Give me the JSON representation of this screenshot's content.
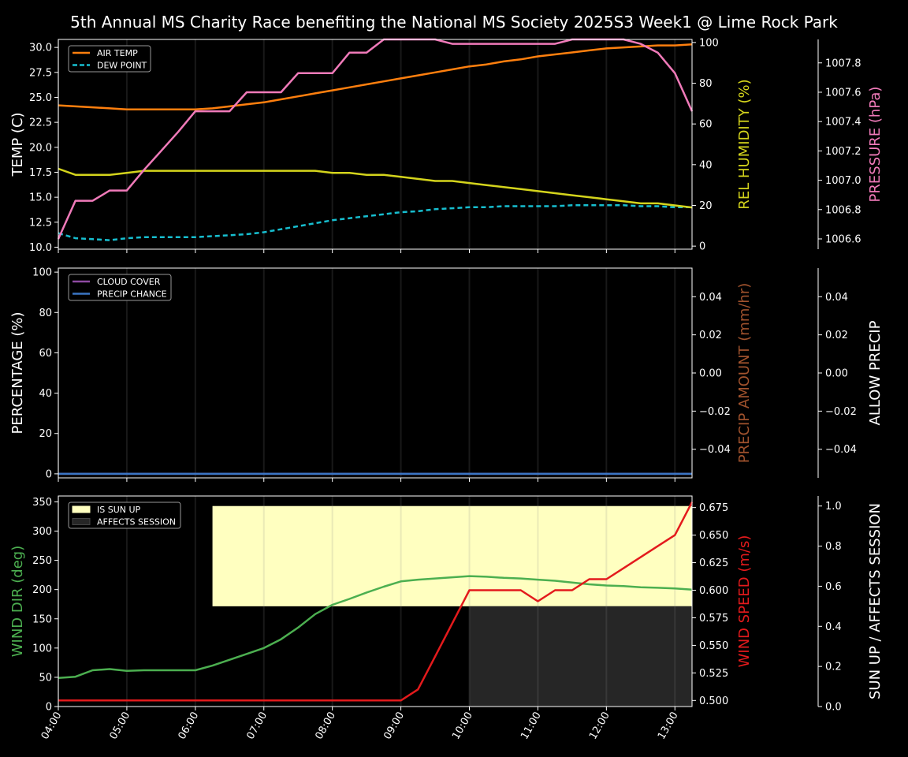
{
  "title": "5th Annual MS Charity Race benefiting the National MS Society 2025S3 Week1 @ Lime Rock Park",
  "colors": {
    "air_temp": "#ff7f0e",
    "dew_point": "#17becf",
    "humidity": "#d4d41c",
    "pressure": "#f07ab9",
    "cloud_cover": "#8e4aa2",
    "precip_chance": "#3a75c4",
    "precip_amount": "#a0522d",
    "wind_dir": "#4caf50",
    "wind_speed": "#e31a1c",
    "sun_up": "#ffffc0",
    "affects_session": "#262626"
  },
  "chart_data": [
    {
      "type": "line",
      "panel": "top",
      "x": [
        "04:00",
        "04:15",
        "04:30",
        "04:45",
        "05:00",
        "05:15",
        "05:30",
        "05:45",
        "06:00",
        "06:15",
        "06:30",
        "06:45",
        "07:00",
        "07:15",
        "07:30",
        "07:45",
        "08:00",
        "08:15",
        "08:30",
        "08:45",
        "09:00",
        "09:15",
        "09:30",
        "09:45",
        "10:00",
        "10:15",
        "10:30",
        "10:45",
        "11:00",
        "11:15",
        "11:30",
        "11:45",
        "12:00",
        "12:15",
        "12:30",
        "12:45",
        "13:00",
        "13:15"
      ],
      "xticks": [
        "04:00",
        "05:00",
        "06:00",
        "07:00",
        "08:00",
        "09:00",
        "10:00",
        "11:00",
        "12:00",
        "13:00"
      ],
      "axes": {
        "left": {
          "label": "TEMP (C)",
          "ylim": [
            9.8,
            30.8
          ],
          "ticks": [
            "10.0",
            "12.5",
            "15.0",
            "17.5",
            "20.0",
            "22.5",
            "25.0",
            "27.5",
            "30.0"
          ]
        },
        "right1": {
          "label": "REL HUMIDITY (%)",
          "ylim": [
            -1.5,
            101.5
          ],
          "ticks": [
            "0",
            "20",
            "40",
            "60",
            "80",
            "100"
          ]
        },
        "right2": {
          "label": "PRESSURE (hPa)",
          "ylim": [
            1006.53,
            1007.96
          ],
          "ticks": [
            "1006.6",
            "1006.8",
            "1007.0",
            "1007.2",
            "1007.4",
            "1007.6",
            "1007.8"
          ]
        }
      },
      "legend": {
        "placement": "top-left",
        "entries": [
          "AIR TEMP",
          "DEW POINT"
        ]
      },
      "series": [
        {
          "name": "AIR TEMP",
          "axis": "left",
          "values": [
            24.2,
            24.1,
            24.0,
            23.9,
            23.8,
            23.8,
            23.8,
            23.8,
            23.8,
            23.9,
            24.1,
            24.3,
            24.5,
            24.8,
            25.1,
            25.4,
            25.7,
            26.0,
            26.3,
            26.6,
            26.9,
            27.2,
            27.5,
            27.8,
            28.1,
            28.3,
            28.6,
            28.8,
            29.1,
            29.3,
            29.5,
            29.7,
            29.9,
            30.0,
            30.1,
            30.2,
            30.2,
            30.3
          ]
        },
        {
          "name": "DEW POINT",
          "axis": "left",
          "values": [
            11.4,
            10.9,
            10.8,
            10.7,
            10.9,
            11.0,
            11.0,
            11.0,
            11.0,
            11.1,
            11.2,
            11.3,
            11.5,
            11.8,
            12.1,
            12.4,
            12.7,
            12.9,
            13.1,
            13.3,
            13.5,
            13.6,
            13.8,
            13.9,
            14.0,
            14.0,
            14.1,
            14.1,
            14.1,
            14.1,
            14.2,
            14.2,
            14.2,
            14.2,
            14.1,
            14.1,
            14.0,
            14.0
          ]
        },
        {
          "name": "REL HUMIDITY",
          "axis": "right1",
          "values": [
            38,
            35,
            35,
            35,
            36,
            37,
            37,
            37,
            37,
            37,
            37,
            37,
            37,
            37,
            37,
            37,
            36,
            36,
            35,
            35,
            34,
            33,
            32,
            32,
            31,
            30,
            29,
            28,
            27,
            26,
            25,
            24,
            23,
            22,
            21,
            21,
            20,
            19
          ]
        },
        {
          "name": "PRESSURE",
          "axis": "right2",
          "values": [
            1006.6,
            1006.86,
            1006.86,
            1006.93,
            1006.93,
            1007.07,
            1007.2,
            1007.33,
            1007.47,
            1007.47,
            1007.47,
            1007.6,
            1007.6,
            1007.6,
            1007.73,
            1007.73,
            1007.73,
            1007.87,
            1007.87,
            1008.0,
            1008.13,
            1008.07,
            1008.07,
            1007.93,
            1007.93,
            1007.93,
            1007.93,
            1007.93,
            1007.93,
            1007.93,
            1008.0,
            1008.0,
            1008.0,
            1008.0,
            1007.93,
            1007.87,
            1007.73,
            1007.47
          ]
        }
      ]
    },
    {
      "type": "line",
      "panel": "middle",
      "x": [
        "04:00",
        "13:15"
      ],
      "axes": {
        "left": {
          "label": "PERCENTAGE (%)",
          "ylim": [
            -2,
            102
          ],
          "ticks": [
            "0",
            "20",
            "40",
            "60",
            "80",
            "100"
          ]
        },
        "right1": {
          "label": "PRECIP AMOUNT (mm/hr)",
          "ylim": [
            -0.055,
            0.055
          ],
          "ticks": [
            "−0.04",
            "−0.02",
            "0.00",
            "0.02",
            "0.04"
          ]
        },
        "right2": {
          "label": "ALLOW PRECIP",
          "ylim": [
            -0.055,
            0.055
          ],
          "ticks": [
            "−0.04",
            "−0.02",
            "0.00",
            "0.02",
            "0.04"
          ]
        }
      },
      "legend": {
        "placement": "top-left",
        "entries": [
          "CLOUD COVER",
          "PRECIP CHANCE"
        ]
      },
      "series": [
        {
          "name": "CLOUD COVER",
          "axis": "left",
          "values": [
            0,
            0
          ]
        },
        {
          "name": "PRECIP CHANCE",
          "axis": "left",
          "values": [
            0,
            0
          ]
        }
      ]
    },
    {
      "type": "line",
      "panel": "bottom",
      "x": [
        "04:00",
        "04:15",
        "04:30",
        "04:45",
        "05:00",
        "05:15",
        "05:30",
        "05:45",
        "06:00",
        "06:15",
        "06:30",
        "06:45",
        "07:00",
        "07:15",
        "07:30",
        "07:45",
        "08:00",
        "08:15",
        "08:30",
        "08:45",
        "09:00",
        "09:15",
        "09:30",
        "09:45",
        "10:00",
        "10:15",
        "10:30",
        "10:45",
        "11:00",
        "11:15",
        "11:30",
        "11:45",
        "12:00",
        "12:15",
        "12:30",
        "12:45",
        "13:00",
        "13:15"
      ],
      "axes": {
        "left": {
          "label": "WIND DIR (deg)",
          "ylim": [
            0,
            360
          ],
          "ticks": [
            "0",
            "50",
            "100",
            "150",
            "200",
            "250",
            "300",
            "350"
          ]
        },
        "right1": {
          "label": "WIND SPEED (m/s)",
          "ylim": [
            0.4945,
            0.6855
          ],
          "ticks": [
            "0.500",
            "0.525",
            "0.550",
            "0.575",
            "0.600",
            "0.625",
            "0.650",
            "0.675"
          ]
        },
        "right2": {
          "label": "SUN UP / AFFECTS SESSION",
          "ylim": [
            0,
            1.05
          ],
          "ticks": [
            "0.0",
            "0.2",
            "0.4",
            "0.6",
            "0.8",
            "1.0"
          ]
        }
      },
      "legend": {
        "placement": "top-left",
        "entries": [
          "IS SUN UP",
          "AFFECTS SESSION"
        ]
      },
      "bands": [
        {
          "name": "IS SUN UP",
          "from": "06:15",
          "to": "13:15",
          "y0": 0.5,
          "y1": 1.0
        },
        {
          "name": "AFFECTS SESSION",
          "from": "10:00",
          "to": "13:15",
          "y0": 0.0,
          "y1": 0.5
        }
      ],
      "series": [
        {
          "name": "WIND DIR",
          "axis": "left",
          "values": [
            49,
            51,
            62,
            64,
            61,
            62,
            62,
            62,
            62,
            70,
            80,
            90,
            100,
            115,
            135,
            158,
            174,
            184,
            195,
            205,
            214,
            217,
            219,
            221,
            223,
            222,
            220,
            219,
            217,
            215,
            212,
            209,
            207,
            206,
            204,
            203,
            202,
            200
          ]
        },
        {
          "name": "WIND SPEED",
          "axis": "right1",
          "values": [
            0.5,
            0.5,
            0.5,
            0.5,
            0.5,
            0.5,
            0.5,
            0.5,
            0.5,
            0.5,
            0.5,
            0.5,
            0.5,
            0.5,
            0.5,
            0.5,
            0.5,
            0.5,
            0.5,
            0.5,
            0.5,
            0.51,
            0.54,
            0.57,
            0.6,
            0.6,
            0.6,
            0.6,
            0.59,
            0.6,
            0.6,
            0.61,
            0.61,
            0.62,
            0.63,
            0.64,
            0.65,
            0.68
          ]
        }
      ]
    }
  ]
}
